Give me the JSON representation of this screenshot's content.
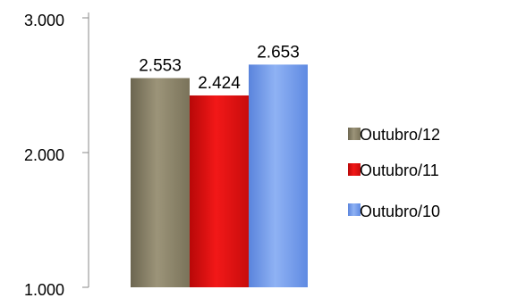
{
  "chart_data": {
    "type": "bar",
    "title": "",
    "xlabel": "",
    "ylabel": "",
    "ylim": [
      1000,
      3000
    ],
    "yticks": [
      1000,
      2000,
      3000
    ],
    "ytick_labels": [
      "1.000",
      "2.000",
      "3.000"
    ],
    "grid": false,
    "legend_position": "right",
    "series": [
      {
        "name": "Outubro/12",
        "value": 2553,
        "label": "2.553",
        "color": "#8b8366"
      },
      {
        "name": "Outubro/11",
        "value": 2424,
        "label": "2.424",
        "color": "#e01010"
      },
      {
        "name": "Outubro/10",
        "value": 2653,
        "label": "2.653",
        "color": "#6f98ec"
      }
    ]
  }
}
